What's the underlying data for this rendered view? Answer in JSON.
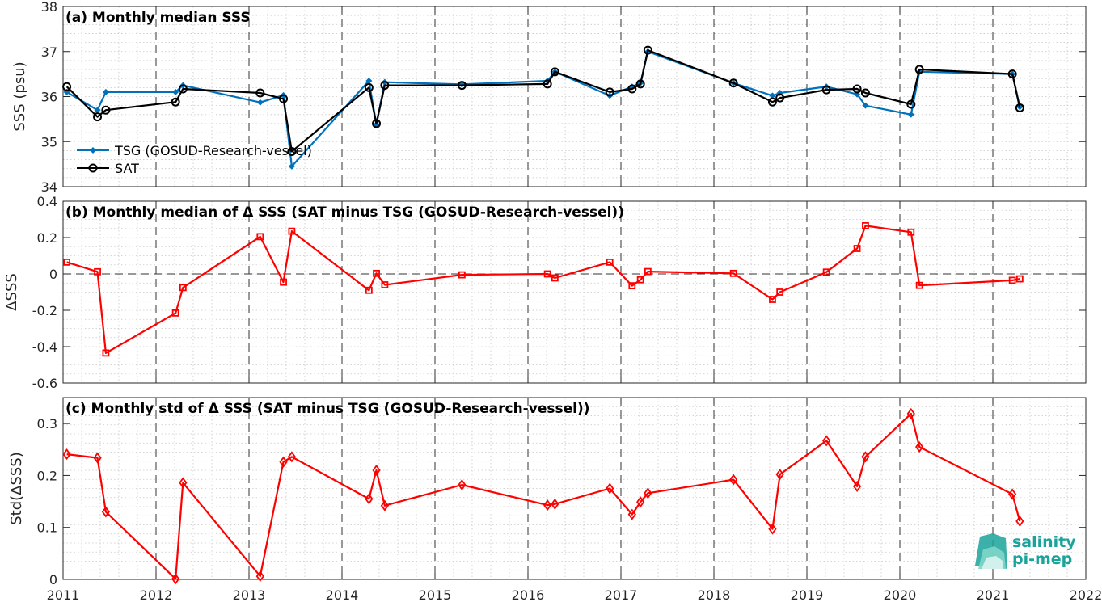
{
  "chart_data": [
    {
      "type": "line",
      "title": "(a) Monthly median SSS",
      "xlabel": "",
      "ylabel": "SSS (psu)",
      "ylim": [
        34,
        38
      ],
      "yticks": [
        34,
        35,
        36,
        37,
        38
      ],
      "xlim": [
        2011,
        2022
      ],
      "xticks": [
        2011,
        2012,
        2013,
        2014,
        2015,
        2016,
        2017,
        2018,
        2019,
        2020,
        2021,
        2022
      ],
      "grid": "dotted minor grid, dashed year lines",
      "legend_placement": "lower-left",
      "series": [
        {
          "name": "TSG (GOSUD-Research-vessel)",
          "color": "#0072bd",
          "marker": "filled-diamond",
          "x": [
            2011.04,
            2011.37,
            2011.46,
            2012.21,
            2012.29,
            2013.12,
            2013.37,
            2013.46,
            2014.29,
            2014.37,
            2014.46,
            2015.29,
            2016.21,
            2016.29,
            2016.88,
            2017.12,
            2017.21,
            2017.29,
            2018.21,
            2018.63,
            2018.71,
            2019.21,
            2019.54,
            2019.63,
            2020.12,
            2020.21,
            2021.21,
            2021.29
          ],
          "y": [
            36.1,
            35.7,
            36.1,
            36.1,
            36.25,
            35.87,
            36.03,
            34.45,
            36.35,
            35.38,
            36.32,
            36.27,
            36.35,
            36.55,
            36.02,
            36.22,
            36.3,
            37.0,
            36.3,
            36.02,
            36.08,
            36.22,
            36.05,
            35.8,
            35.6,
            36.55,
            36.5,
            35.77
          ]
        },
        {
          "name": "SAT",
          "color": "#000000",
          "marker": "open-circle",
          "x": [
            2011.04,
            2011.37,
            2011.46,
            2012.21,
            2012.29,
            2013.12,
            2013.37,
            2013.46,
            2014.29,
            2014.37,
            2014.46,
            2015.29,
            2016.21,
            2016.29,
            2016.88,
            2017.12,
            2017.21,
            2017.29,
            2018.21,
            2018.63,
            2018.71,
            2019.21,
            2019.54,
            2019.63,
            2020.12,
            2020.21,
            2021.21,
            2021.29
          ],
          "y": [
            36.22,
            35.55,
            35.7,
            35.88,
            36.17,
            36.08,
            35.95,
            34.78,
            36.2,
            35.4,
            36.25,
            36.25,
            36.28,
            36.55,
            36.1,
            36.17,
            36.28,
            37.03,
            36.3,
            35.88,
            35.97,
            36.15,
            36.17,
            36.08,
            35.83,
            36.6,
            36.5,
            35.75
          ]
        }
      ]
    },
    {
      "type": "line",
      "title": "(b) Monthly median of Δ SSS (SAT minus TSG (GOSUD-Research-vessel))",
      "xlabel": "",
      "ylabel": "ΔSSS",
      "ylim": [
        -0.6,
        0.4
      ],
      "yticks": [
        -0.6,
        -0.4,
        -0.2,
        0,
        0.2,
        0.4
      ],
      "yticklabels": [
        "-0.6",
        "-0.4",
        "-0.2",
        "0",
        "0.2",
        "0.4"
      ],
      "xlim": [
        2011,
        2022
      ],
      "reference_line": 0,
      "series": [
        {
          "color": "#ff0000",
          "marker": "open-square",
          "x": [
            2011.04,
            2011.37,
            2011.46,
            2012.21,
            2012.29,
            2013.12,
            2013.37,
            2013.46,
            2014.29,
            2014.37,
            2014.46,
            2015.29,
            2016.21,
            2016.29,
            2016.88,
            2017.12,
            2017.21,
            2017.29,
            2018.21,
            2018.63,
            2018.71,
            2019.21,
            2019.54,
            2019.63,
            2020.12,
            2020.21,
            2021.21,
            2021.29
          ],
          "y": [
            0.065,
            0.012,
            -0.435,
            -0.215,
            -0.075,
            0.205,
            -0.045,
            0.235,
            -0.09,
            0.003,
            -0.06,
            -0.005,
            0.0,
            -0.022,
            0.065,
            -0.065,
            -0.032,
            0.013,
            0.003,
            -0.14,
            -0.1,
            0.01,
            0.14,
            0.265,
            0.23,
            -0.063,
            -0.035,
            -0.027
          ]
        }
      ]
    },
    {
      "type": "line",
      "title": "(c) Monthly std of Δ SSS (SAT minus TSG (GOSUD-Research-vessel))",
      "xlabel": "",
      "ylabel": "Std(ΔSSS)",
      "ylim": [
        0,
        0.35
      ],
      "yticks": [
        0,
        0.1,
        0.2,
        0.3
      ],
      "yticklabels": [
        "0",
        "0.1",
        "0.2",
        "0.3"
      ],
      "xlim": [
        2011,
        2022
      ],
      "xticks": [
        2011,
        2012,
        2013,
        2014,
        2015,
        2016,
        2017,
        2018,
        2019,
        2020,
        2021,
        2022
      ],
      "series": [
        {
          "color": "#ff0000",
          "marker": "open-diamond",
          "x": [
            2011.04,
            2011.37,
            2011.46,
            2012.21,
            2012.29,
            2013.12,
            2013.37,
            2013.46,
            2014.29,
            2014.37,
            2014.46,
            2015.29,
            2016.21,
            2016.29,
            2016.88,
            2017.12,
            2017.21,
            2017.29,
            2018.21,
            2018.63,
            2018.71,
            2019.21,
            2019.54,
            2019.63,
            2020.12,
            2020.21,
            2021.21,
            2021.29
          ],
          "y": [
            0.241,
            0.234,
            0.13,
            0.001,
            0.186,
            0.006,
            0.226,
            0.236,
            0.155,
            0.21,
            0.142,
            0.182,
            0.143,
            0.145,
            0.175,
            0.125,
            0.149,
            0.166,
            0.192,
            0.097,
            0.202,
            0.267,
            0.179,
            0.236,
            0.319,
            0.255,
            0.164,
            0.112
          ]
        }
      ]
    }
  ],
  "logo": {
    "line1": "salinity",
    "line2": "pi-mep",
    "color": "#1aa39a"
  }
}
